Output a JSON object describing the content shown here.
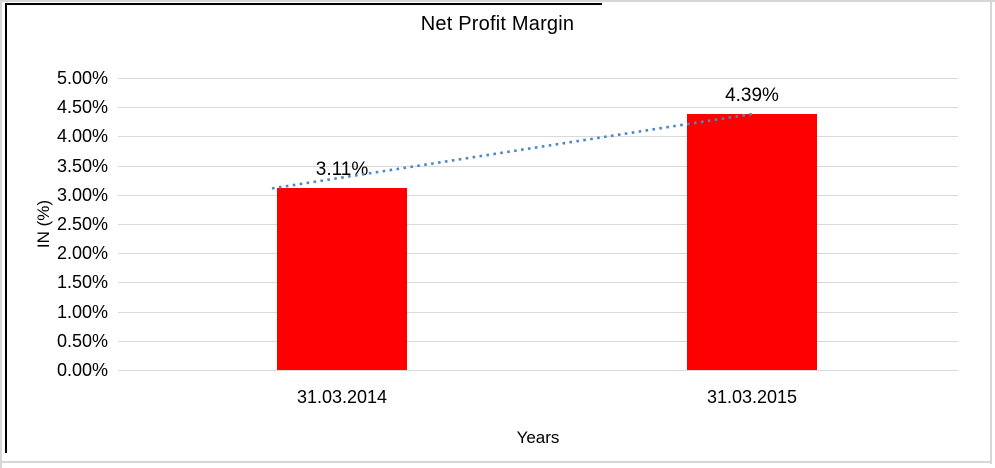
{
  "chart_data": {
    "type": "bar",
    "title": "Net Profit Margin",
    "xlabel": "Years",
    "ylabel": "IN (%)",
    "categories": [
      "31.03.2014",
      "31.03.2015"
    ],
    "values": [
      3.11,
      4.39
    ],
    "data_labels": [
      "3.11%",
      "4.39%"
    ],
    "ylim": [
      0,
      5
    ],
    "y_tick_step": 0.5,
    "y_ticks": [
      "5.00%",
      "4.50%",
      "4.00%",
      "3.50%",
      "3.00%",
      "2.50%",
      "2.00%",
      "1.50%",
      "1.00%",
      "0.50%",
      "0.00%"
    ],
    "grid": true,
    "legend": "none",
    "trendline": {
      "style": "dotted",
      "from_value": 3.11,
      "to_value": 4.39
    },
    "colors": {
      "bar": "#ff0000",
      "trendline": "#4f87c6",
      "gridline": "#d9d9d9",
      "text": "#000000",
      "picture_border": "#000000",
      "outer_frame": "#d6d6d6"
    }
  }
}
